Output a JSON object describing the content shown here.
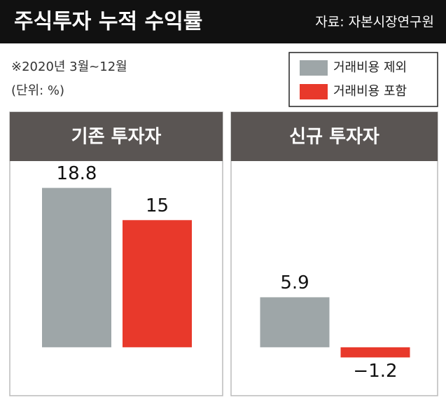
{
  "header": {
    "title": "주식투자 누적 수익률",
    "source": "자료: 자본시장연구원",
    "note": "※2020년 3월~12월",
    "unit": "(단위: %)"
  },
  "chart_data": {
    "type": "bar",
    "categories": [
      "기존 투자자",
      "신규 투자자"
    ],
    "series": [
      {
        "name": "거래비용 제외",
        "color": "#9ea6a8",
        "values": [
          18.8,
          5.9
        ]
      },
      {
        "name": "거래비용 포함",
        "color": "#e8392b",
        "values": [
          15,
          -1.2
        ],
        "value_labels": [
          "15",
          "−1.2"
        ]
      }
    ],
    "ylim": [
      -5.3,
      21.8
    ]
  }
}
